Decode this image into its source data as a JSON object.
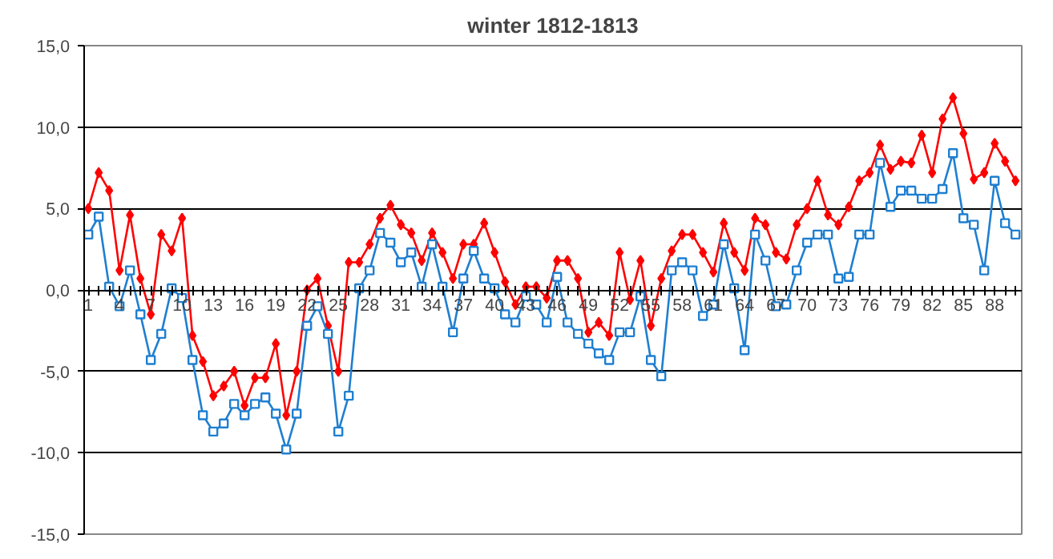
{
  "chart_data": {
    "type": "line",
    "title": "winter 1812-1813",
    "categories": [
      "1",
      null,
      null,
      "4",
      null,
      null,
      "7",
      null,
      null,
      "10",
      null,
      null,
      "13",
      null,
      null,
      "16",
      null,
      null,
      "19",
      null,
      null,
      "22",
      null,
      null,
      "25",
      null,
      null,
      "28",
      null,
      null,
      "31",
      null,
      null,
      "34",
      null,
      null,
      "37",
      null,
      null,
      "40",
      null,
      null,
      "43",
      null,
      null,
      "46",
      null,
      null,
      "49",
      null,
      null,
      "52",
      null,
      null,
      "55",
      null,
      null,
      "58",
      null,
      null,
      "61",
      null,
      null,
      "64",
      null,
      null,
      "67",
      null,
      null,
      "70",
      null,
      null,
      "73",
      null,
      null,
      "76",
      null,
      null,
      "79",
      null,
      null,
      "82",
      null,
      null,
      "85",
      null,
      null,
      "88",
      null,
      null
    ],
    "series": [
      {
        "color": "#ff0000",
        "marker": "diamond",
        "values": [
          5.0,
          7.2,
          6.1,
          1.2,
          4.6,
          0.7,
          -1.5,
          3.4,
          2.4,
          4.4,
          -2.8,
          -4.4,
          -6.5,
          -5.9,
          -5.0,
          -7.1,
          -5.4,
          -5.4,
          -3.3,
          -7.7,
          -5.0,
          0.0,
          0.7,
          -2.2,
          -5.0,
          1.7,
          1.7,
          2.8,
          4.4,
          5.2,
          4.0,
          3.5,
          1.8,
          3.5,
          2.3,
          0.7,
          2.8,
          2.8,
          4.1,
          2.3,
          0.5,
          -0.9,
          0.2,
          0.2,
          -0.5,
          1.8,
          1.8,
          0.7,
          -2.6,
          -2.0,
          -2.8,
          2.3,
          -0.6,
          1.8,
          -2.2,
          0.7,
          2.4,
          3.4,
          3.4,
          2.3,
          1.1,
          4.1,
          2.3,
          1.2,
          4.4,
          4.0,
          2.3,
          1.9,
          4.0,
          5.0,
          6.7,
          4.6,
          4.0,
          5.1,
          6.7,
          7.2,
          8.9,
          7.4,
          7.9,
          7.8,
          9.5,
          7.2,
          10.5,
          11.8,
          9.6,
          6.8,
          7.2,
          9.0,
          7.9,
          6.7
        ]
      },
      {
        "color": "#1f7fd0",
        "marker": "square",
        "values": [
          3.4,
          4.5,
          0.2,
          -1.0,
          1.2,
          -1.5,
          -4.3,
          -2.7,
          0.1,
          -0.5,
          -4.3,
          -7.7,
          -8.7,
          -8.2,
          -7.0,
          -7.7,
          -7.0,
          -6.6,
          -7.6,
          -9.8,
          -7.6,
          -2.2,
          -1.0,
          -2.7,
          -8.7,
          -6.5,
          0.1,
          1.2,
          3.5,
          2.9,
          1.7,
          2.3,
          0.2,
          2.8,
          0.2,
          -2.6,
          0.7,
          2.4,
          0.7,
          0.1,
          -1.5,
          -2.0,
          -0.4,
          -0.9,
          -2.0,
          0.8,
          -2.0,
          -2.7,
          -3.3,
          -3.9,
          -4.3,
          -2.6,
          -2.6,
          -0.4,
          -4.3,
          -5.3,
          1.2,
          1.7,
          1.2,
          -1.6,
          -0.9,
          2.8,
          0.1,
          -3.7,
          3.4,
          1.8,
          -1.0,
          -0.9,
          1.2,
          2.9,
          3.4,
          3.4,
          0.7,
          0.8,
          3.4,
          3.4,
          7.8,
          5.1,
          6.1,
          6.1,
          5.6,
          5.6,
          6.2,
          8.4,
          4.4,
          4.0,
          1.2,
          6.7,
          4.1,
          3.4
        ]
      }
    ],
    "ylim": [
      -15,
      15
    ],
    "yticks": [
      {
        "value": -15,
        "label": "-15,0"
      },
      {
        "value": -10,
        "label": "-10,0"
      },
      {
        "value": -5,
        "label": "-5,0"
      },
      {
        "value": 0,
        "label": "0,0"
      },
      {
        "value": 5,
        "label": "5,0"
      },
      {
        "value": 10,
        "label": "10,0"
      },
      {
        "value": 15,
        "label": "15,0"
      }
    ],
    "grid": "y",
    "line_style": "solid"
  }
}
